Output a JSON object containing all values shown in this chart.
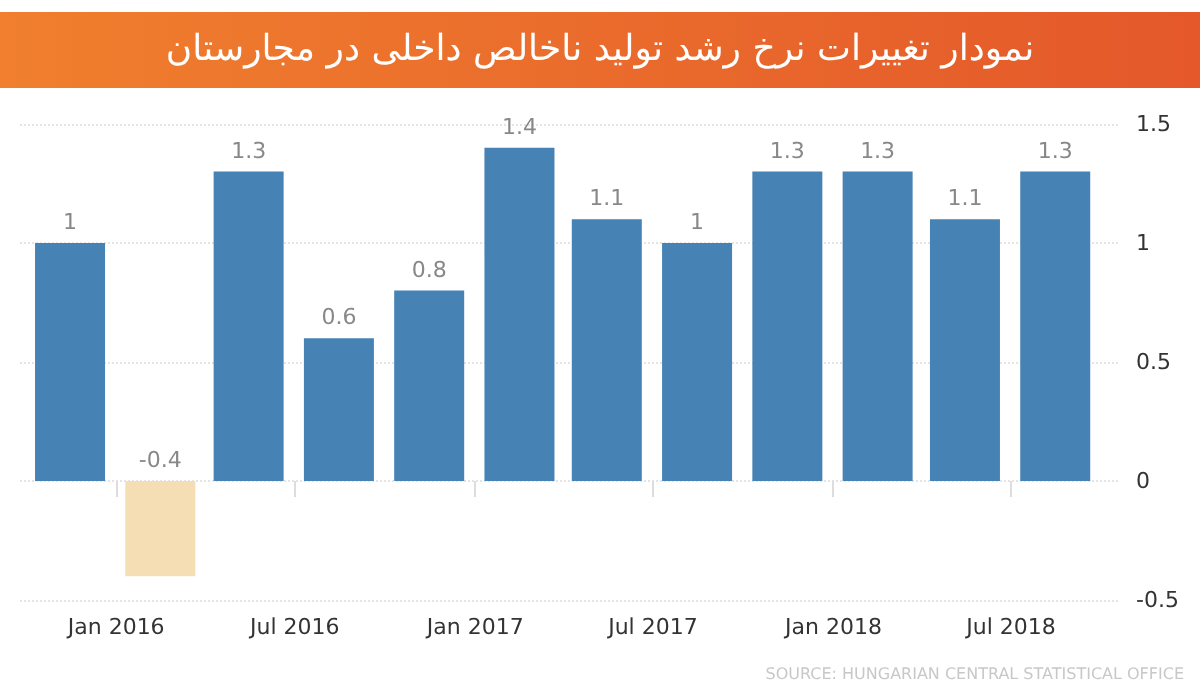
{
  "chart_data": {
    "type": "bar",
    "title": "نمودار تغییرات نرخ رشد تولید ناخالص داخلی در مجارستان",
    "x": [
      "2015-11-15",
      "2016-02-15",
      "2016-05-15",
      "2016-08-15",
      "2016-11-15",
      "2017-02-15",
      "2017-05-15",
      "2017-08-15",
      "2017-11-15",
      "2018-02-15",
      "2018-05-15",
      "2018-08-15"
    ],
    "values": [
      1,
      -0.4,
      1.3,
      0.6,
      0.8,
      1.4,
      1.1,
      1,
      1.3,
      1.3,
      1.1,
      1.3
    ],
    "colors": [
      "#4682b4",
      "#f5deb3",
      "#4682b4",
      "#4682b4",
      "#4682b4",
      "#4682b4",
      "#4682b4",
      "#4682b4",
      "#4682b4",
      "#4682b4",
      "#4682b4",
      "#4682b4"
    ],
    "data_labels": true,
    "xlim": [
      "2015-09-25",
      "2018-10-20"
    ],
    "xticks": [
      {
        "value": "2016-01-01",
        "label": "Jan 2016"
      },
      {
        "value": "2016-07-01",
        "label": "Jul 2016"
      },
      {
        "value": "2017-01-01",
        "label": "Jan 2017"
      },
      {
        "value": "2017-07-01",
        "label": "Jul 2017"
      },
      {
        "value": "2018-01-01",
        "label": "Jan 2018"
      },
      {
        "value": "2018-07-01",
        "label": "Jul 2018"
      }
    ],
    "ylim": [
      -0.5,
      1.5
    ],
    "yticks": [
      -0.5,
      0,
      0.5,
      1,
      1.5
    ],
    "grid": "y",
    "annotations": [
      "SOURCE: HUNGARIAN CENTRAL STATISTICAL OFFICE"
    ]
  }
}
